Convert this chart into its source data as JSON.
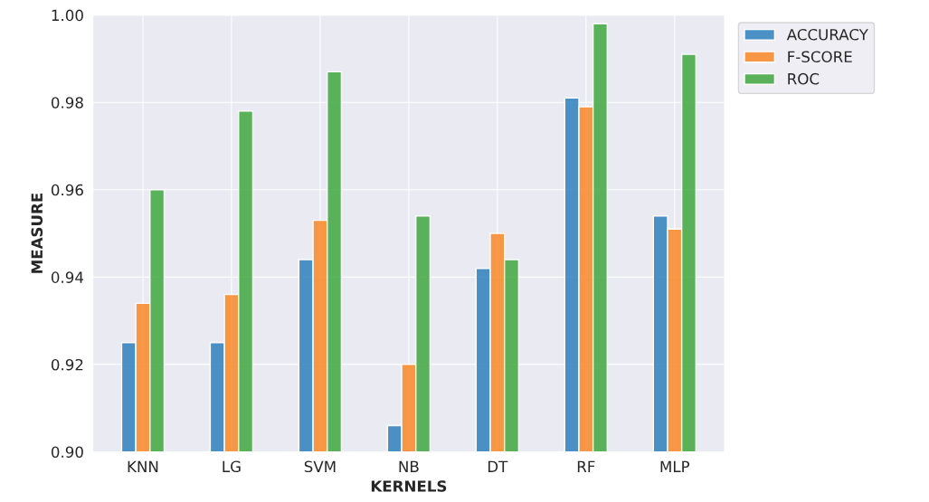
{
  "chart_data": {
    "type": "bar",
    "xlabel": "KERNELS",
    "ylabel": "MEASURE",
    "categories": [
      "KNN",
      "LG",
      "SVM",
      "NB",
      "DT",
      "RF",
      "MLP"
    ],
    "series": [
      {
        "name": "ACCURACY",
        "color": "#3a87c0",
        "values": [
          0.925,
          0.925,
          0.944,
          0.906,
          0.942,
          0.981,
          0.954
        ]
      },
      {
        "name": "F-SCORE",
        "color": "#f98d31",
        "values": [
          0.934,
          0.936,
          0.953,
          0.92,
          0.95,
          0.979,
          0.951
        ]
      },
      {
        "name": "ROC",
        "color": "#4aab49",
        "values": [
          0.96,
          0.978,
          0.987,
          0.954,
          0.944,
          0.998,
          0.991
        ]
      }
    ],
    "ylim": [
      0.9,
      1.0
    ],
    "yticks": [
      {
        "value": 0.9,
        "label": "0.90"
      },
      {
        "value": 0.92,
        "label": "0.92"
      },
      {
        "value": 0.94,
        "label": "0.94"
      },
      {
        "value": 0.96,
        "label": "0.96"
      },
      {
        "value": 0.98,
        "label": "0.98"
      },
      {
        "value": 1.0,
        "label": "1.00"
      }
    ],
    "grid": true,
    "legend": "top right"
  }
}
